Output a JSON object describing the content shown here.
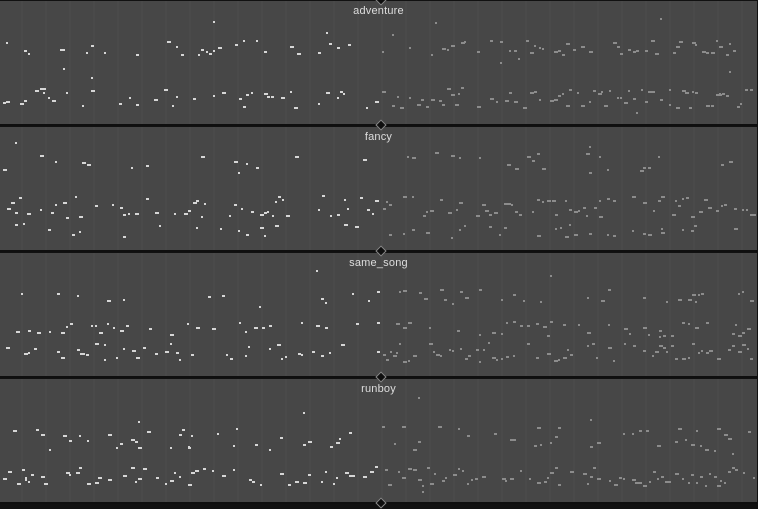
{
  "panels": [
    {
      "title": "adventure"
    },
    {
      "title": "fancy"
    },
    {
      "title": "same_song"
    },
    {
      "title": "runboy"
    }
  ],
  "colors": {
    "panel_bg": "#474747",
    "divider": "#0f0f0f",
    "played_note": "#d6d6d6",
    "generated_note": "#8c8c8c",
    "beat_grid": "#4d4d4d",
    "title_text": "#dddddd"
  }
}
